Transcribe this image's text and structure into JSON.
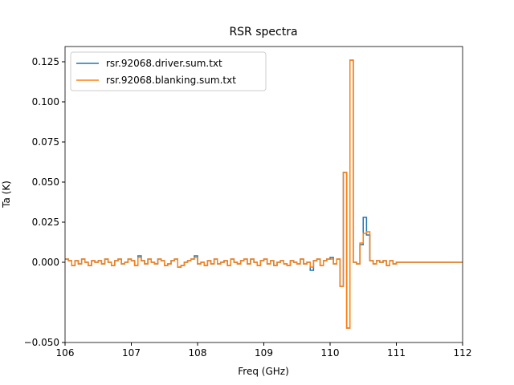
{
  "chart_data": {
    "type": "step",
    "title": "RSR spectra",
    "x_label": "Freq  (GHz)",
    "y_label": "Ta (K)",
    "x": [
      106,
      106.05,
      106.1,
      106.15,
      106.2,
      106.25,
      106.3,
      106.35,
      106.4,
      106.45,
      106.5,
      106.55,
      106.6,
      106.65,
      106.7,
      106.75,
      106.8,
      106.85,
      106.9,
      106.95,
      107,
      107.05,
      107.1,
      107.15,
      107.2,
      107.25,
      107.3,
      107.35,
      107.4,
      107.45,
      107.5,
      107.55,
      107.6,
      107.65,
      107.7,
      107.75,
      107.8,
      107.85,
      107.9,
      107.95,
      108,
      108.05,
      108.1,
      108.15,
      108.2,
      108.25,
      108.3,
      108.35,
      108.4,
      108.45,
      108.5,
      108.55,
      108.6,
      108.65,
      108.7,
      108.75,
      108.8,
      108.85,
      108.9,
      108.95,
      109,
      109.05,
      109.1,
      109.15,
      109.2,
      109.25,
      109.3,
      109.35,
      109.4,
      109.45,
      109.5,
      109.55,
      109.6,
      109.65,
      109.7,
      109.75,
      109.8,
      109.85,
      109.9,
      109.95,
      110,
      110.05,
      110.1,
      110.15,
      110.2,
      110.25,
      110.3,
      110.35,
      110.4,
      110.45,
      110.5,
      110.55,
      110.6,
      110.65,
      110.7,
      110.75,
      110.8,
      110.85,
      110.9,
      110.95,
      111,
      112
    ],
    "series": [
      {
        "name": "rsr.92068.driver.sum.txt",
        "color": "#1f77b4",
        "values": [
          0.002,
          0.001,
          -0.002,
          0.001,
          -0.001,
          0.002,
          0,
          -0.002,
          0.001,
          0,
          0.001,
          -0.001,
          0.002,
          0,
          -0.002,
          0.001,
          0.002,
          -0.001,
          0,
          0.002,
          0.001,
          -0.002,
          0.004,
          0.001,
          -0.001,
          0.002,
          0,
          -0.001,
          0.002,
          0.001,
          -0.002,
          -0.001,
          0.001,
          0.002,
          -0.003,
          -0.002,
          0,
          0.001,
          0.002,
          0.004,
          -0.001,
          0,
          -0.002,
          0.001,
          -0.001,
          0.002,
          -0.001,
          0,
          0.001,
          -0.002,
          0.002,
          0,
          -0.001,
          0.001,
          0.002,
          -0.001,
          0.002,
          0,
          -0.002,
          0.001,
          0.002,
          -0.001,
          0.001,
          -0.002,
          0,
          0.001,
          -0.001,
          -0.002,
          0.001,
          0,
          -0.001,
          0.002,
          -0.001,
          0,
          -0.005,
          0.001,
          0.002,
          -0.002,
          0.001,
          0.002,
          0.003,
          -0.001,
          0.002,
          -0.015,
          0.056,
          -0.041,
          0.126,
          0,
          -0.001,
          0.011,
          0.028,
          0.017,
          0.001,
          -0.001,
          0.001,
          0,
          0.001,
          -0.002,
          0.001,
          -0.001,
          0,
          0
        ]
      },
      {
        "name": "rsr.92068.blanking.sum.txt",
        "color": "#ff7f0e",
        "values": [
          0.002,
          0.001,
          -0.002,
          0.001,
          -0.001,
          0.002,
          0,
          -0.002,
          0.001,
          0,
          0.001,
          -0.001,
          0.002,
          0,
          -0.002,
          0.001,
          0.002,
          -0.001,
          0,
          0.002,
          0.001,
          -0.002,
          0.003,
          0.001,
          -0.001,
          0.002,
          0,
          -0.001,
          0.002,
          0.001,
          -0.002,
          -0.001,
          0.001,
          0.002,
          -0.003,
          -0.002,
          0,
          0.001,
          0.002,
          0.003,
          -0.001,
          0,
          -0.002,
          0.001,
          -0.001,
          0.002,
          -0.001,
          0,
          0.001,
          -0.002,
          0.002,
          0,
          -0.001,
          0.001,
          0.002,
          -0.001,
          0.002,
          0,
          -0.002,
          0.001,
          0.002,
          -0.001,
          0.001,
          -0.002,
          0,
          0.001,
          -0.001,
          -0.002,
          0.001,
          0,
          -0.001,
          0.002,
          -0.001,
          0,
          -0.003,
          0.001,
          0.002,
          -0.002,
          0.001,
          0.002,
          0.002,
          -0.001,
          0.002,
          -0.015,
          0.056,
          -0.041,
          0.126,
          0,
          -0.001,
          0.012,
          0.018,
          0.019,
          0.001,
          -0.001,
          0.001,
          0,
          0.001,
          -0.002,
          0.001,
          -0.001,
          0,
          0
        ]
      }
    ],
    "xlim": [
      106,
      112
    ],
    "xticks": [
      106,
      107,
      108,
      109,
      110,
      111,
      112
    ],
    "ylim": [
      -0.05,
      0.1345
    ],
    "yticks": [
      {
        "value": -0.05,
        "label": "−0.050"
      },
      0.025,
      {
        "value": 0,
        "label": "0.000"
      },
      {
        "value": 0.05,
        "label": "0.050"
      },
      {
        "value": 0.075,
        "label": "0.075"
      },
      {
        "value": 0.1,
        "label": "0.100"
      },
      0.125
    ],
    "legend": "upper left"
  }
}
